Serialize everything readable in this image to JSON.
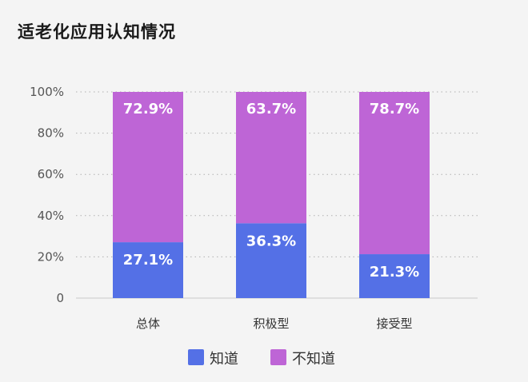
{
  "chart_data": {
    "type": "bar",
    "stacked": true,
    "title": "适老化应用认知情况",
    "categories": [
      "总体",
      "积极型",
      "接受型"
    ],
    "series": [
      {
        "name": "知道",
        "values": [
          27.1,
          36.3,
          21.3
        ],
        "labels": [
          "27.1%",
          "36.3%",
          "21.3%"
        ],
        "color": "#5470e6"
      },
      {
        "name": "不知道",
        "values": [
          72.9,
          63.7,
          78.7
        ],
        "labels": [
          "72.9%",
          "63.7%",
          "78.7%"
        ],
        "color": "#be65d6"
      }
    ],
    "yticks": [
      "0",
      "20%",
      "40%",
      "60%",
      "80%",
      "100%"
    ],
    "ylim": [
      0,
      100
    ],
    "grid": true,
    "legend_position": "bottom"
  }
}
